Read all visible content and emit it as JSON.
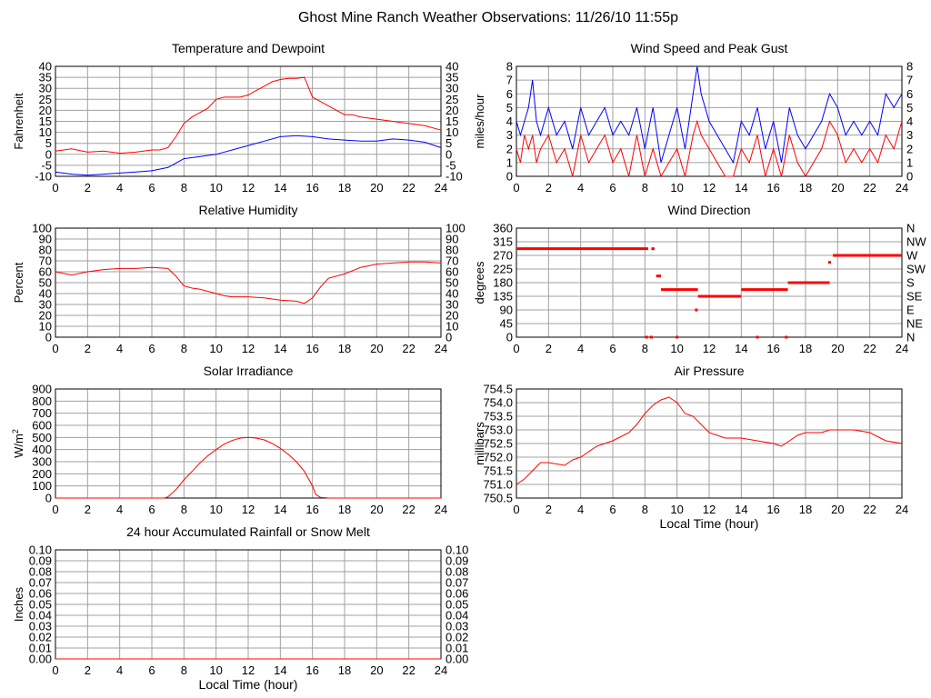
{
  "page_title": "Ghost Mine Ranch Weather Observations: 11/26/10 11:55p",
  "colors": {
    "red": "#ff0000",
    "blue": "#0000ff",
    "grid": "#a0a0a0",
    "axis": "#000000"
  },
  "chart_data": [
    {
      "id": "temp",
      "type": "line",
      "title": "Temperature and Dewpoint",
      "ylabel": "Fahrenheit",
      "xlabel": "",
      "xlim": [
        0,
        24
      ],
      "ylim": [
        -10,
        40
      ],
      "xticks": [
        "0",
        "2",
        "4",
        "6",
        "8",
        "10",
        "12",
        "14",
        "16",
        "18",
        "20",
        "22",
        "24"
      ],
      "yticks": [
        "-10",
        "-5",
        "0",
        "5",
        "10",
        "15",
        "20",
        "25",
        "30",
        "35",
        "40"
      ],
      "right_ticks": [
        "-10",
        "-5",
        "0",
        "5",
        "10",
        "15",
        "20",
        "25",
        "30",
        "35",
        "40"
      ],
      "grid": true,
      "series": [
        {
          "color": "#ff0000",
          "x": [
            0,
            1,
            2,
            3,
            4,
            5,
            6,
            6.5,
            7,
            7.5,
            8,
            8.5,
            9,
            9.5,
            10,
            10.5,
            11,
            11.5,
            12,
            12.5,
            13,
            13.5,
            14,
            14.5,
            15,
            15.5,
            16,
            16.5,
            17,
            17.5,
            18,
            18.5,
            19,
            20,
            21,
            22,
            23,
            24
          ],
          "y": [
            1.5,
            2.5,
            1,
            1.5,
            0.5,
            1,
            2,
            2,
            3,
            8,
            14,
            17,
            19,
            21,
            25,
            26,
            26,
            26,
            27,
            29,
            31,
            33,
            34,
            34.5,
            34.5,
            35,
            26,
            24,
            22,
            20,
            18,
            18,
            17,
            16,
            15,
            14,
            13,
            11
          ]
        },
        {
          "color": "#0000ff",
          "x": [
            0,
            1,
            2,
            3,
            4,
            5,
            6,
            7,
            7.5,
            8,
            9,
            10,
            11,
            12,
            13,
            14,
            15,
            16,
            17,
            18,
            19,
            20,
            21,
            22,
            23,
            24
          ],
          "y": [
            -8,
            -9,
            -9.5,
            -9,
            -8.5,
            -8,
            -7.5,
            -6,
            -4,
            -2,
            -1,
            0,
            2,
            4,
            6,
            8,
            8.5,
            8,
            7,
            6.5,
            6,
            6,
            7,
            6.5,
            5.5,
            3
          ]
        }
      ]
    },
    {
      "id": "wind",
      "type": "line",
      "title": "Wind Speed and Peak Gust",
      "ylabel": "miles/hour",
      "xlabel": "",
      "xlim": [
        0,
        24
      ],
      "ylim": [
        0,
        8
      ],
      "xticks": [
        "0",
        "2",
        "4",
        "6",
        "8",
        "10",
        "12",
        "14",
        "16",
        "18",
        "20",
        "22",
        "24"
      ],
      "yticks": [
        "0",
        "1",
        "2",
        "3",
        "4",
        "5",
        "6",
        "7",
        "8"
      ],
      "right_ticks": [
        "0",
        "1",
        "2",
        "3",
        "4",
        "5",
        "6",
        "7",
        "8"
      ],
      "grid": true,
      "series": [
        {
          "color": "#0000ff",
          "x": [
            0,
            0.25,
            0.5,
            0.75,
            1,
            1.25,
            1.5,
            2,
            2.5,
            3,
            3.5,
            4,
            4.5,
            5,
            5.5,
            6,
            6.5,
            7,
            7.5,
            8,
            8.5,
            9,
            9.5,
            10,
            10.5,
            11,
            11.25,
            11.5,
            12,
            12.5,
            13,
            13.5,
            14,
            14.5,
            15,
            15.5,
            16,
            16.5,
            17,
            17.5,
            18,
            18.5,
            19,
            19.5,
            20,
            20.5,
            21,
            21.5,
            22,
            22.5,
            23,
            23.5,
            24
          ],
          "y": [
            4,
            3,
            4,
            5,
            7,
            4,
            3,
            5,
            3,
            4,
            2,
            5,
            3,
            4,
            5,
            3,
            4,
            3,
            5,
            2,
            5,
            1,
            3,
            5,
            2,
            6,
            8,
            6,
            4,
            3,
            2,
            1,
            4,
            3,
            5,
            2,
            4,
            1,
            5,
            3,
            2,
            3,
            4,
            6,
            5,
            3,
            4,
            3,
            4,
            3,
            6,
            5,
            6
          ]
        },
        {
          "color": "#ff0000",
          "x": [
            0,
            0.25,
            0.5,
            0.75,
            1,
            1.25,
            1.5,
            2,
            2.5,
            3,
            3.5,
            4,
            4.5,
            5,
            5.5,
            6,
            6.5,
            7,
            7.5,
            8,
            8.5,
            9,
            9.5,
            10,
            10.5,
            11,
            11.25,
            11.5,
            12,
            12.5,
            13,
            13.5,
            14,
            14.5,
            15,
            15.5,
            16,
            16.5,
            17,
            17.5,
            18,
            18.5,
            19,
            19.5,
            20,
            20.5,
            21,
            21.5,
            22,
            22.5,
            23,
            23.5,
            24
          ],
          "y": [
            2,
            1,
            3,
            2,
            3,
            1,
            2,
            3,
            1,
            2,
            0,
            3,
            1,
            2,
            3,
            1,
            2,
            0,
            3,
            0,
            2,
            0,
            1,
            2,
            0,
            3,
            4,
            3,
            2,
            1,
            0,
            0,
            2,
            1,
            3,
            0,
            2,
            0,
            3,
            1,
            0,
            1,
            2,
            4,
            3,
            1,
            2,
            1,
            2,
            1,
            3,
            2,
            4
          ]
        }
      ]
    },
    {
      "id": "rh",
      "type": "line",
      "title": "Relative Humidity",
      "ylabel": "Percent",
      "xlabel": "",
      "xlim": [
        0,
        24
      ],
      "ylim": [
        0,
        100
      ],
      "xticks": [
        "0",
        "2",
        "4",
        "6",
        "8",
        "10",
        "12",
        "14",
        "16",
        "18",
        "20",
        "22",
        "24"
      ],
      "yticks": [
        "0",
        "10",
        "20",
        "30",
        "40",
        "50",
        "60",
        "70",
        "80",
        "90",
        "100"
      ],
      "right_ticks": [
        "0",
        "10",
        "20",
        "30",
        "40",
        "50",
        "60",
        "70",
        "80",
        "90",
        "100"
      ],
      "grid": true,
      "series": [
        {
          "color": "#ff0000",
          "x": [
            0,
            1,
            2,
            3,
            4,
            5,
            6,
            7,
            7.5,
            8,
            8.5,
            9,
            9.5,
            10,
            10.5,
            11,
            12,
            13,
            14,
            15,
            15.5,
            16,
            16.5,
            17,
            18,
            19,
            20,
            21,
            22,
            23,
            24
          ],
          "y": [
            60,
            57,
            60,
            62,
            63,
            63,
            64,
            63,
            56,
            47,
            45,
            44,
            42,
            40,
            38,
            37,
            37,
            36,
            34,
            33,
            31,
            36,
            46,
            54,
            58,
            64,
            67,
            68,
            69,
            69,
            68
          ]
        }
      ]
    },
    {
      "id": "dir",
      "type": "scatter",
      "title": "Wind Direction",
      "ylabel": "degrees",
      "xlabel": "",
      "xlim": [
        0,
        24
      ],
      "ylim": [
        0,
        360
      ],
      "xticks": [
        "0",
        "2",
        "4",
        "6",
        "8",
        "10",
        "12",
        "14",
        "16",
        "18",
        "20",
        "22",
        "24"
      ],
      "yticks": [
        "0",
        "45",
        "90",
        "135",
        "180",
        "225",
        "270",
        "315",
        "360"
      ],
      "right_ticks": [
        "N",
        "NE",
        "E",
        "SE",
        "S",
        "SW",
        "W",
        "NW",
        "N"
      ],
      "grid": true,
      "segments": [
        {
          "x1": 0,
          "x2": 8.2,
          "y": 292
        },
        {
          "x1": 8.4,
          "x2": 8.6,
          "y": 292
        },
        {
          "x1": 8.7,
          "x2": 9.0,
          "y": 202
        },
        {
          "x1": 9.0,
          "x2": 11.3,
          "y": 157
        },
        {
          "x1": 11.3,
          "x2": 14.0,
          "y": 135
        },
        {
          "x1": 14.0,
          "x2": 16.9,
          "y": 157
        },
        {
          "x1": 16.9,
          "x2": 19.5,
          "y": 180
        },
        {
          "x1": 19.7,
          "x2": 24,
          "y": 270
        }
      ],
      "points": [
        {
          "x": 8.1,
          "y": 0
        },
        {
          "x": 8.4,
          "y": 0
        },
        {
          "x": 10.0,
          "y": 0
        },
        {
          "x": 11.2,
          "y": 90
        },
        {
          "x": 15.0,
          "y": 0
        },
        {
          "x": 16.8,
          "y": 0
        },
        {
          "x": 19.5,
          "y": 247
        }
      ]
    },
    {
      "id": "solar",
      "type": "line",
      "title": "Solar Irradiance",
      "ylabel": "W/m",
      "ylabel_sup": "2",
      "xlabel": "",
      "xlim": [
        0,
        24
      ],
      "ylim": [
        0,
        900
      ],
      "xticks": [
        "0",
        "2",
        "4",
        "6",
        "8",
        "10",
        "12",
        "14",
        "16",
        "18",
        "20",
        "22",
        "24"
      ],
      "yticks": [
        "0",
        "100",
        "200",
        "300",
        "400",
        "500",
        "600",
        "700",
        "800",
        "900"
      ],
      "right_ticks": [],
      "grid": true,
      "series": [
        {
          "color": "#ff0000",
          "x": [
            0,
            6.8,
            7,
            7.5,
            8,
            8.5,
            9,
            9.5,
            10,
            10.5,
            11,
            11.5,
            12,
            12.5,
            13,
            13.5,
            14,
            14.5,
            15,
            15.5,
            16,
            16.2,
            16.5,
            17,
            24
          ],
          "y": [
            0,
            0,
            10,
            70,
            150,
            220,
            290,
            350,
            400,
            445,
            475,
            495,
            500,
            495,
            480,
            450,
            410,
            360,
            300,
            220,
            100,
            30,
            5,
            0,
            0
          ]
        }
      ]
    },
    {
      "id": "pressure",
      "type": "line",
      "title": "Air Pressure",
      "ylabel": "millibars",
      "xlabel": "Local Time (hour)",
      "xlim": [
        0,
        24
      ],
      "ylim": [
        750.5,
        754.5
      ],
      "xticks": [
        "0",
        "2",
        "4",
        "6",
        "8",
        "10",
        "12",
        "14",
        "16",
        "18",
        "20",
        "22",
        "24"
      ],
      "yticks": [
        "750.5",
        "751.0",
        "751.5",
        "752.0",
        "752.5",
        "753.0",
        "753.5",
        "754.0",
        "754.5"
      ],
      "right_ticks": [],
      "grid": true,
      "series": [
        {
          "color": "#ff0000",
          "x": [
            0,
            0.5,
            1,
            1.5,
            2,
            3,
            3.5,
            4,
            5,
            6,
            7,
            7.5,
            8,
            8.5,
            9,
            9.5,
            10,
            10.5,
            11,
            11.5,
            12,
            12.5,
            13,
            14,
            15,
            16,
            16.5,
            17,
            17.5,
            18,
            19,
            19.5,
            20,
            21,
            22,
            23,
            24
          ],
          "y": [
            751.0,
            751.2,
            751.5,
            751.8,
            751.8,
            751.7,
            751.9,
            752.0,
            752.4,
            752.6,
            752.9,
            753.2,
            753.6,
            753.9,
            754.1,
            754.2,
            754.0,
            753.6,
            753.5,
            753.2,
            752.9,
            752.8,
            752.7,
            752.7,
            752.6,
            752.5,
            752.4,
            752.6,
            752.8,
            752.9,
            752.9,
            753.0,
            753.0,
            753.0,
            752.9,
            752.6,
            752.5
          ]
        }
      ]
    },
    {
      "id": "rain",
      "type": "line",
      "title": "24 hour Accumulated Rainfall or Snow Melt",
      "ylabel": "Inches",
      "xlabel": "Local Time (hour)",
      "xlim": [
        0,
        24
      ],
      "ylim": [
        0,
        0.1
      ],
      "xticks": [
        "0",
        "2",
        "4",
        "6",
        "8",
        "10",
        "12",
        "14",
        "16",
        "18",
        "20",
        "22",
        "24"
      ],
      "yticks": [
        "0.00",
        "0.01",
        "0.02",
        "0.03",
        "0.04",
        "0.05",
        "0.06",
        "0.07",
        "0.08",
        "0.09",
        "0.10"
      ],
      "right_ticks": [
        "0.00",
        "0.01",
        "0.02",
        "0.03",
        "0.04",
        "0.05",
        "0.06",
        "0.07",
        "0.08",
        "0.09",
        "0.10"
      ],
      "grid": true,
      "series": [
        {
          "color": "#ff0000",
          "x": [
            0,
            24
          ],
          "y": [
            0,
            0
          ]
        }
      ]
    }
  ]
}
